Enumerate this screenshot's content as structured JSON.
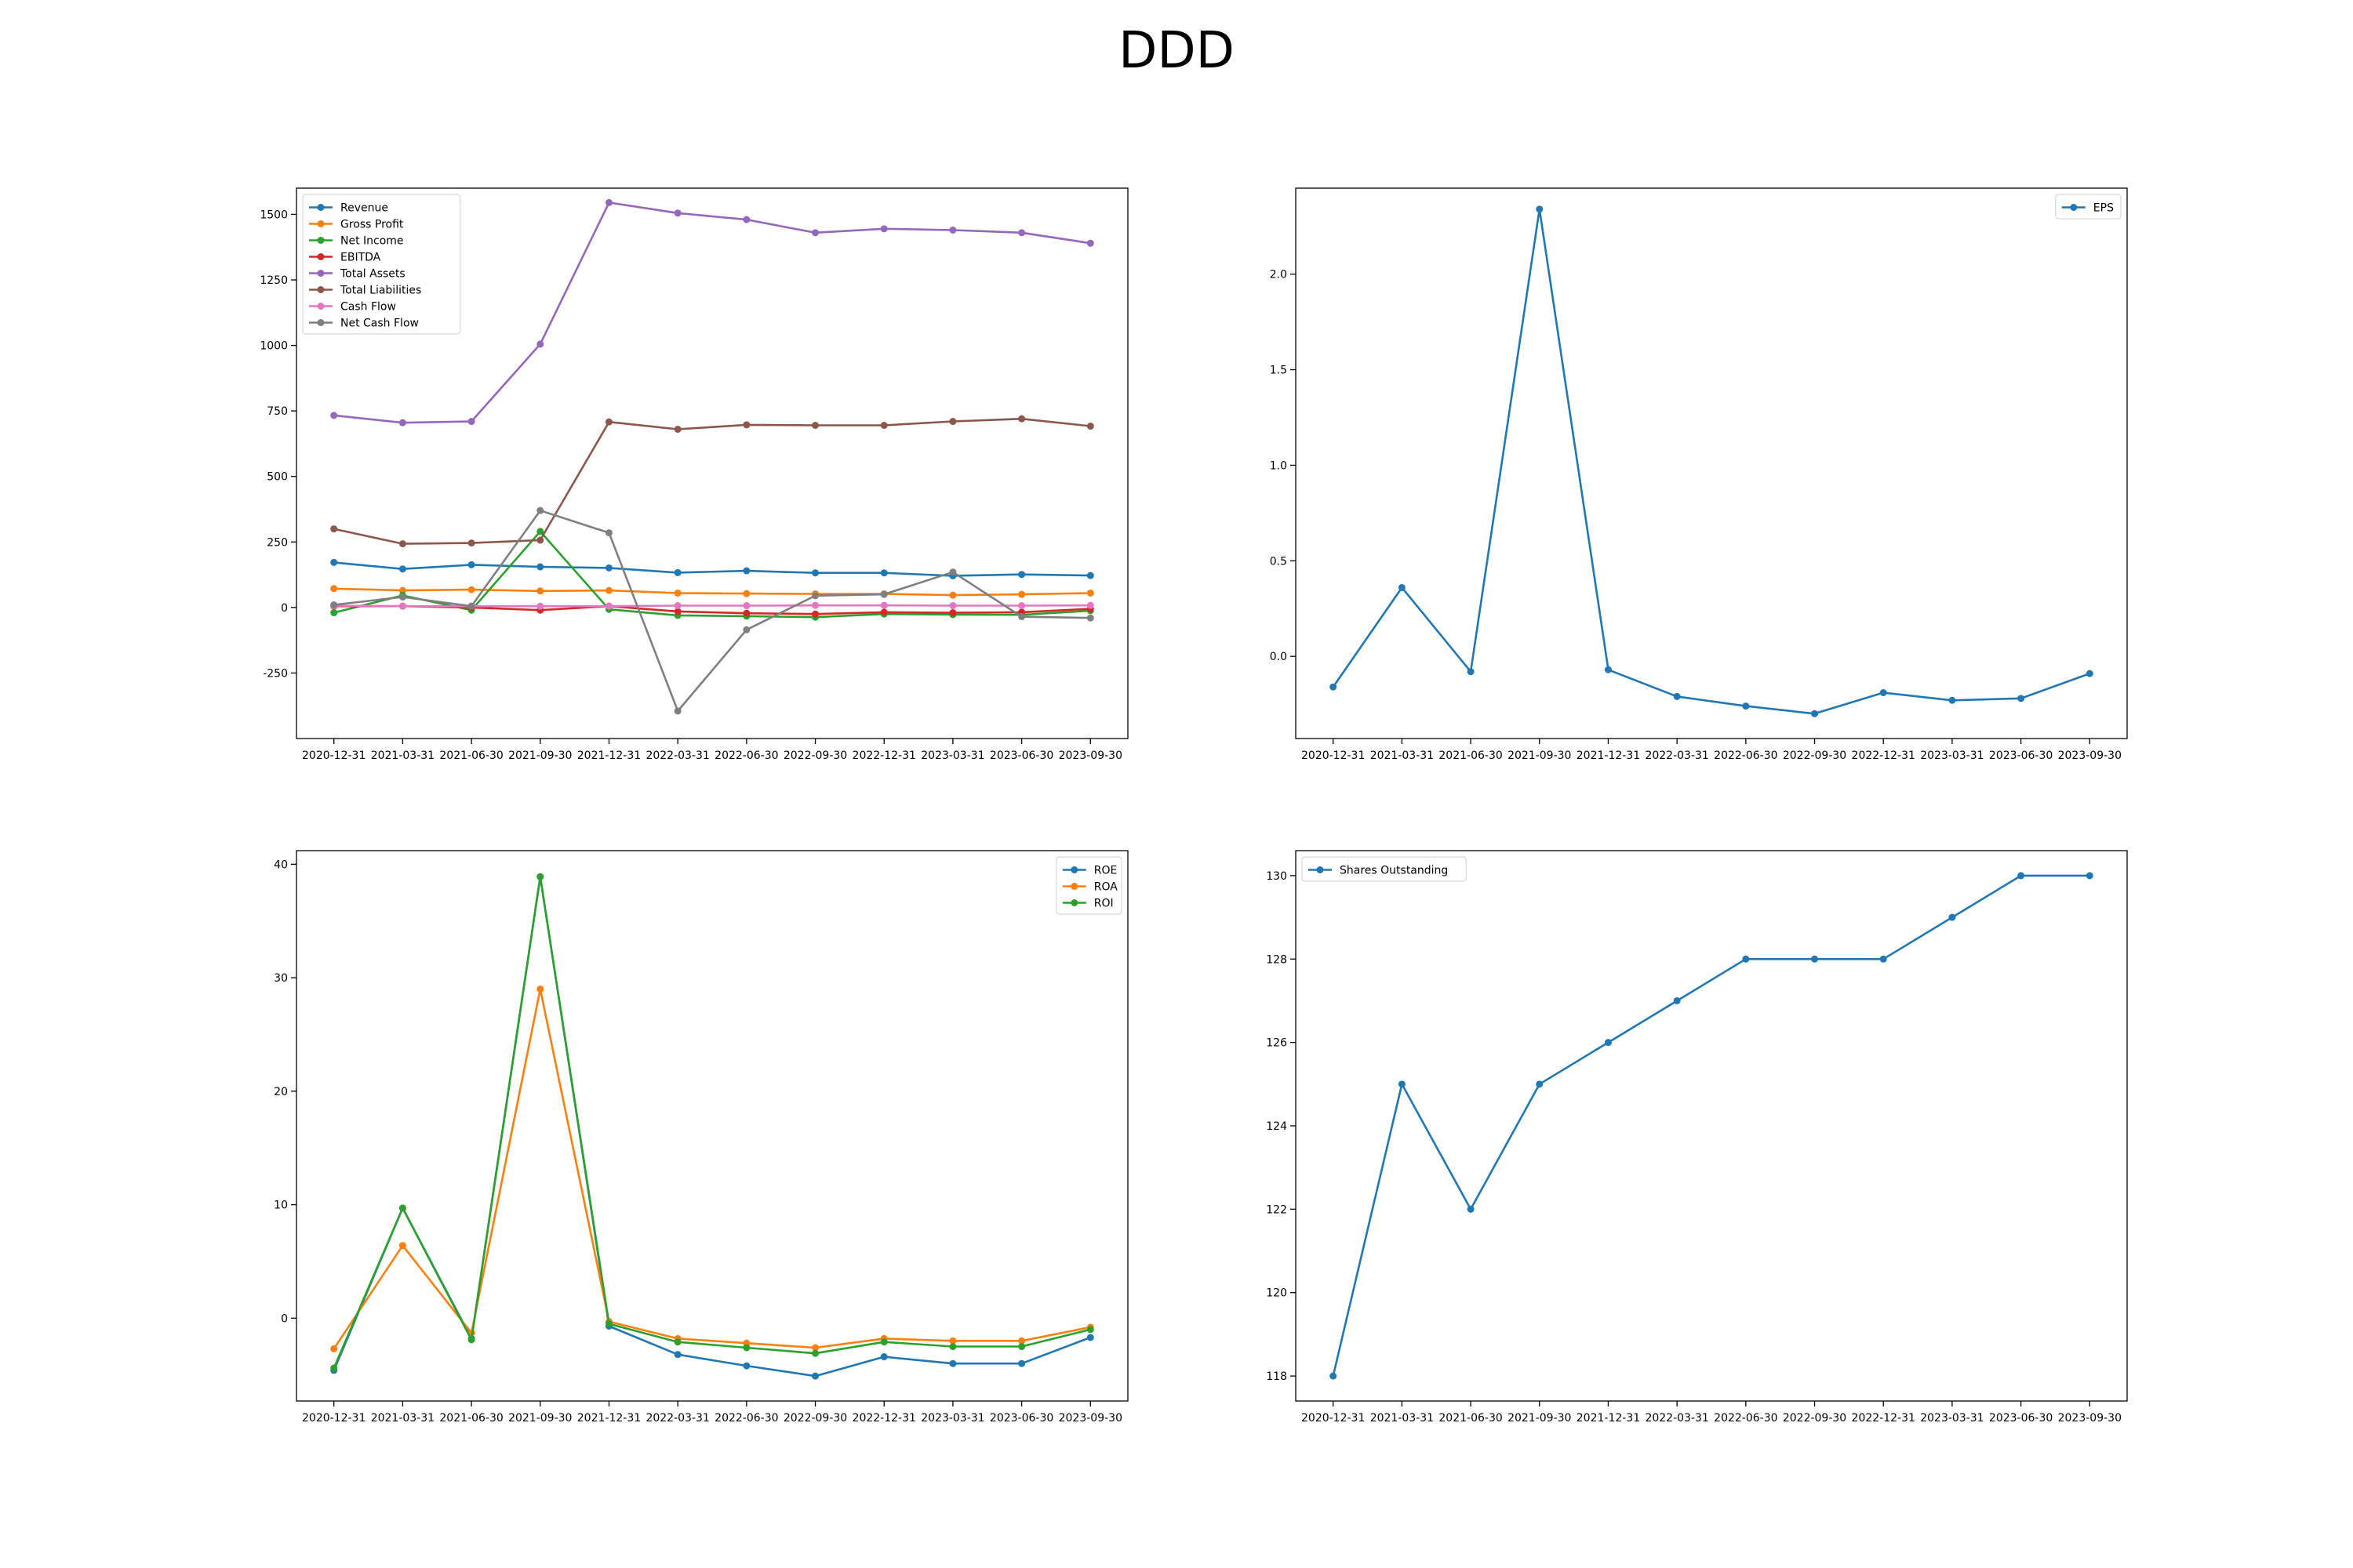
{
  "title": "DDD",
  "chart_data": [
    {
      "type": "line",
      "x": [
        "2020-12-31",
        "2021-03-31",
        "2021-06-30",
        "2021-09-30",
        "2021-12-31",
        "2022-03-31",
        "2022-06-30",
        "2022-09-30",
        "2022-12-31",
        "2023-03-31",
        "2023-06-30",
        "2023-09-30"
      ],
      "ylim": [
        -500,
        1600
      ],
      "yticks": [
        -250,
        0,
        250,
        500,
        750,
        1000,
        1250,
        1500
      ],
      "legend": "upper-left",
      "series": [
        {
          "name": "Revenue",
          "color": "#1f77b4",
          "values": [
            172,
            147,
            163,
            155,
            151,
            133,
            140,
            132,
            132,
            121,
            126,
            122
          ]
        },
        {
          "name": "Gross Profit",
          "color": "#ff7f0e",
          "values": [
            72,
            65,
            68,
            63,
            65,
            55,
            53,
            52,
            52,
            47,
            50,
            55
          ]
        },
        {
          "name": "Net Income",
          "color": "#2ca02c",
          "values": [
            -20,
            46,
            -10,
            290,
            -7,
            -30,
            -33,
            -37,
            -25,
            -27,
            -28,
            -12
          ]
        },
        {
          "name": "EBITDA",
          "color": "#d62728",
          "values": [
            5,
            5,
            0,
            -10,
            5,
            -15,
            -22,
            -25,
            -18,
            -20,
            -18,
            -5
          ]
        },
        {
          "name": "Total Assets",
          "color": "#9467bd",
          "values": [
            733,
            705,
            710,
            1005,
            1545,
            1505,
            1480,
            1430,
            1445,
            1440,
            1430,
            1390
          ]
        },
        {
          "name": "Total Liabilities",
          "color": "#8c564b",
          "values": [
            300,
            243,
            246,
            257,
            708,
            680,
            697,
            695,
            695,
            710,
            720,
            692
          ]
        },
        {
          "name": "Cash Flow",
          "color": "#e377c2",
          "values": [
            7,
            5,
            5,
            5,
            5,
            7,
            7,
            8,
            8,
            7,
            7,
            8
          ]
        },
        {
          "name": "Net Cash Flow",
          "color": "#7f7f7f",
          "values": [
            10,
            40,
            5,
            370,
            285,
            -395,
            -85,
            45,
            50,
            135,
            -35,
            -40
          ]
        }
      ]
    },
    {
      "type": "line",
      "x": [
        "2020-12-31",
        "2021-03-31",
        "2021-06-30",
        "2021-09-30",
        "2021-12-31",
        "2022-03-31",
        "2022-06-30",
        "2022-09-30",
        "2022-12-31",
        "2023-03-31",
        "2023-06-30",
        "2023-09-30"
      ],
      "ylim": [
        -0.43,
        2.45
      ],
      "yticks": [
        0.0,
        0.5,
        1.0,
        1.5,
        2.0
      ],
      "legend": "upper-right",
      "series": [
        {
          "name": "EPS",
          "color": "#1f77b4",
          "values": [
            -0.16,
            0.36,
            -0.08,
            2.34,
            -0.07,
            -0.21,
            -0.26,
            -0.3,
            -0.19,
            -0.23,
            -0.22,
            -0.09
          ]
        }
      ]
    },
    {
      "type": "line",
      "x": [
        "2020-12-31",
        "2021-03-31",
        "2021-06-30",
        "2021-09-30",
        "2021-12-31",
        "2022-03-31",
        "2022-06-30",
        "2022-09-30",
        "2022-12-31",
        "2023-03-31",
        "2023-06-30",
        "2023-09-30"
      ],
      "ylim": [
        -7.3,
        41.2
      ],
      "yticks": [
        0,
        10,
        20,
        30,
        40
      ],
      "legend": "upper-right",
      "series": [
        {
          "name": "ROE",
          "color": "#1f77b4",
          "values": [
            -4.6,
            9.7,
            -1.8,
            38.9,
            -0.7,
            -3.2,
            -4.2,
            -5.1,
            -3.4,
            -4.0,
            -4.0,
            -1.7
          ]
        },
        {
          "name": "ROA",
          "color": "#ff7f0e",
          "values": [
            -2.7,
            6.4,
            -1.3,
            29.0,
            -0.3,
            -1.8,
            -2.2,
            -2.6,
            -1.8,
            -2.0,
            -2.0,
            -0.8
          ]
        },
        {
          "name": "ROI",
          "color": "#2ca02c",
          "values": [
            -4.4,
            9.7,
            -1.9,
            38.9,
            -0.5,
            -2.1,
            -2.6,
            -3.1,
            -2.1,
            -2.5,
            -2.5,
            -1.0
          ]
        }
      ]
    },
    {
      "type": "line",
      "x": [
        "2020-12-31",
        "2021-03-31",
        "2021-06-30",
        "2021-09-30",
        "2021-12-31",
        "2022-03-31",
        "2022-06-30",
        "2022-09-30",
        "2022-12-31",
        "2023-03-31",
        "2023-06-30",
        "2023-09-30"
      ],
      "ylim": [
        117.4,
        130.6
      ],
      "yticks": [
        118,
        120,
        122,
        124,
        126,
        128,
        130
      ],
      "legend": "upper-left",
      "series": [
        {
          "name": "Shares Outstanding",
          "color": "#1f77b4",
          "values": [
            118,
            125,
            122,
            125,
            126,
            127,
            128,
            128,
            128,
            129,
            130,
            130
          ]
        }
      ]
    }
  ]
}
